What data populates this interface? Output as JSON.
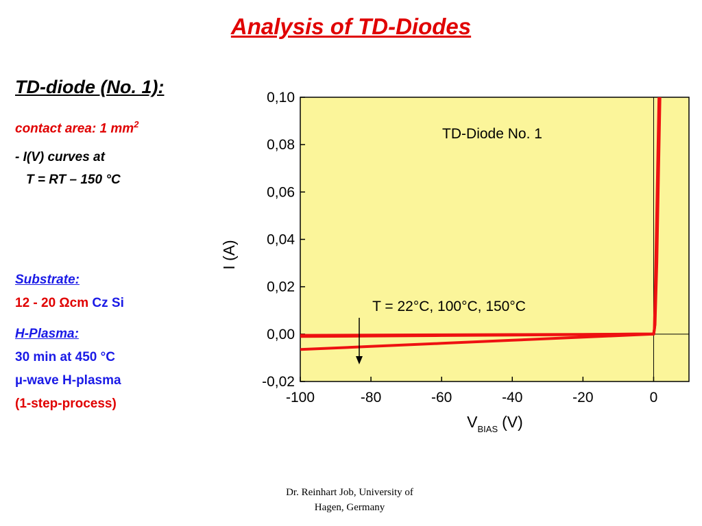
{
  "slide": {
    "title": "Analysis of TD-Diodes",
    "diode_title": "TD-diode (No. 1):",
    "contact_label": "contact area: 1 mm",
    "contact_sup": "2",
    "curves_line1": "- I(V) curves at",
    "curves_line2": "T = RT –  150 °C",
    "substrate_heading": "Substrate:",
    "substrate_value": "12 - 20 Ωcm",
    "substrate_material": "Cz Si",
    "hplasma_heading": "H-Plasma:",
    "hplasma_line1": "30 min at 450 °C",
    "hplasma_line2": "µ-wave H-plasma",
    "hplasma_line3": "(1-step-process)",
    "footer_line1": "Dr. Reinhart Job, University of",
    "footer_line2": "Hagen, Germany"
  },
  "colors": {
    "title_red": "#e00000",
    "text_blue": "#1a1ae6",
    "plot_background": "#fbf59a",
    "curve_red": "#ee1111"
  },
  "chart_data": {
    "type": "line",
    "title": "TD-Diode No. 1",
    "annotation": "T = 22°C, 100°C, 150°C",
    "xlabel_main": "V",
    "xlabel_sub": "BIAS",
    "xlabel_unit": "(V)",
    "ylabel": "I (A)",
    "xlim": [
      -100,
      10
    ],
    "ylim": [
      -0.02,
      0.1
    ],
    "x_ticks": [
      -100,
      -80,
      -60,
      -40,
      -20,
      0
    ],
    "x_tick_labels": [
      "-100",
      "-80",
      "-60",
      "-40",
      "-20",
      "0"
    ],
    "y_ticks": [
      -0.02,
      0.0,
      0.02,
      0.04,
      0.06,
      0.08,
      0.1
    ],
    "y_tick_labels": [
      "-0,02",
      "0,00",
      "0,02",
      "0,04",
      "0,06",
      "0,08",
      "0,10"
    ],
    "grid": false,
    "series": [
      {
        "x": [
          -100,
          -80,
          -60,
          -40,
          -20,
          -5,
          0,
          0.2,
          0.5,
          1.0,
          1.5
        ],
        "y": [
          -0.0005,
          -0.0004,
          -0.0003,
          -0.0002,
          -0.0001,
          0.0,
          0.0,
          0.002,
          0.02,
          0.06,
          0.1
        ]
      },
      {
        "x": [
          -100,
          -80,
          -60,
          -40,
          -20,
          -5,
          0,
          0.3,
          0.7,
          1.2,
          1.6
        ],
        "y": [
          -0.001,
          -0.0008,
          -0.0006,
          -0.0004,
          -0.0002,
          0.0,
          0.0,
          0.003,
          0.025,
          0.065,
          0.1
        ]
      },
      {
        "x": [
          -100,
          -80,
          -60,
          -40,
          -20,
          -5,
          0,
          0.4,
          0.9,
          1.4,
          1.8
        ],
        "y": [
          -0.0065,
          -0.0052,
          -0.0039,
          -0.0026,
          -0.0013,
          -0.0003,
          0.0,
          0.004,
          0.03,
          0.07,
          0.1
        ]
      }
    ]
  }
}
